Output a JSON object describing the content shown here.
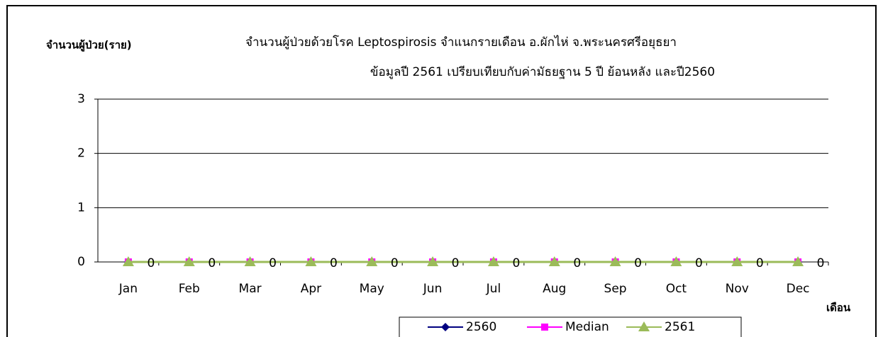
{
  "chart_data": {
    "type": "line",
    "title": "จำนวนผู้ป่วยด้วยโรค  Leptospirosis  จำแนกรายเดือน    อ.ผักไห่ จ.พระนครศรีอยุธยา",
    "subtitle": "ข้อมูลปี 2561 เปรียบเทียบกับค่ามัธยฐาน 5 ปี ย้อนหลัง และปี2560",
    "y_label": "จำนวนผู้ป่วย(ราย)",
    "x_label": "เดือน",
    "categories": [
      "Jan",
      "Feb",
      "Mar",
      "Apr",
      "May",
      "Jun",
      "Jul",
      "Aug",
      "Sep",
      "Oct",
      "Nov",
      "Dec"
    ],
    "series": [
      {
        "name": "2560",
        "color": "#000080",
        "marker": "diamond",
        "values": [
          0,
          0,
          0,
          0,
          0,
          0,
          0,
          0,
          0,
          0,
          0,
          0
        ]
      },
      {
        "name": "Median",
        "color": "#ff00ff",
        "marker": "square",
        "values": [
          0,
          0,
          0,
          0,
          0,
          0,
          0,
          0,
          0,
          0,
          0,
          0
        ]
      },
      {
        "name": "2561",
        "color": "#9bbb59",
        "marker": "triangle",
        "data_labels": true,
        "values": [
          0,
          0,
          0,
          0,
          0,
          0,
          0,
          0,
          0,
          0,
          0,
          0
        ]
      }
    ],
    "ylim": [
      0,
      3
    ],
    "yticks": [
      0,
      1,
      2,
      3
    ],
    "grid": true,
    "legend": "bottom"
  }
}
